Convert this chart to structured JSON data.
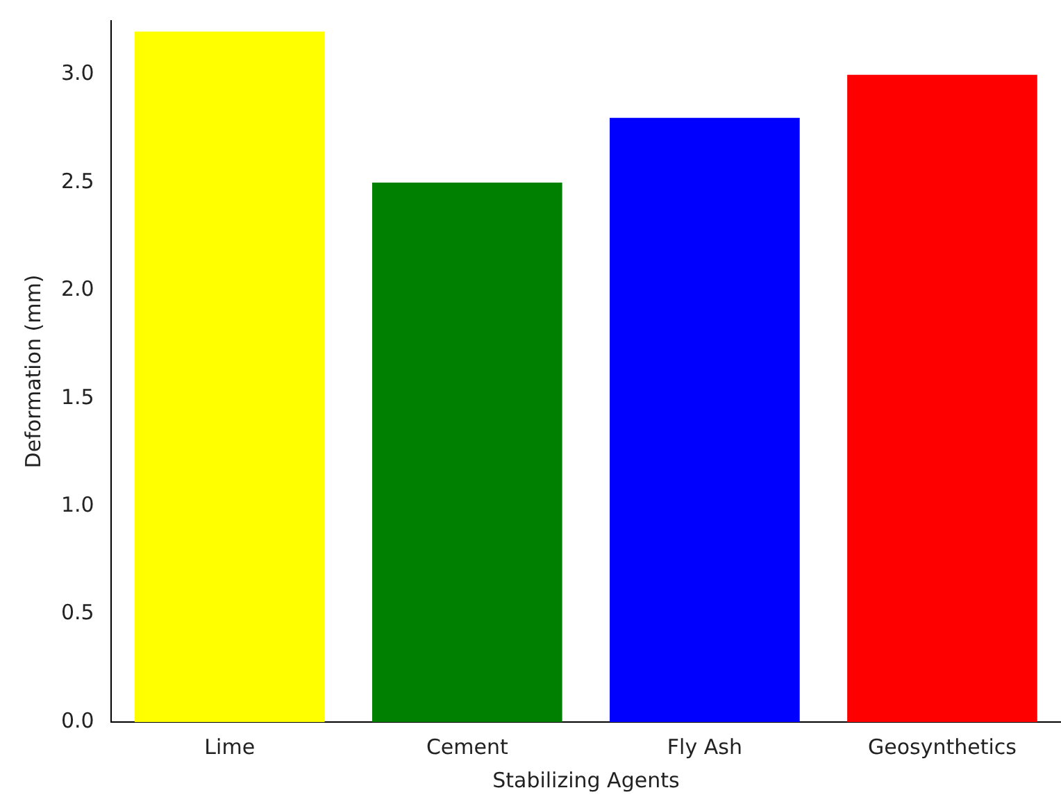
{
  "chart_data": {
    "type": "bar",
    "xlabel": "Stabilizing Agents",
    "ylabel": "Deformation (mm)",
    "categories": [
      "Lime",
      "Cement",
      "Fly Ash",
      "Geosynthetics"
    ],
    "values": [
      3.2,
      2.5,
      2.8,
      3.0
    ],
    "colors": [
      "#ffff00",
      "#008000",
      "#0000ff",
      "#ff0000"
    ],
    "ylim": [
      0,
      3.25
    ],
    "yticks": [
      {
        "value": 0,
        "label": "0.0"
      },
      {
        "value": 0.5,
        "label": "0.5"
      },
      {
        "value": 1,
        "label": "1.0"
      },
      {
        "value": 1.5,
        "label": "1.5"
      },
      {
        "value": 2,
        "label": "2.0"
      },
      {
        "value": 2.5,
        "label": "2.5"
      },
      {
        "value": 3,
        "label": "3.0"
      }
    ],
    "grid": false,
    "legend": false
  }
}
